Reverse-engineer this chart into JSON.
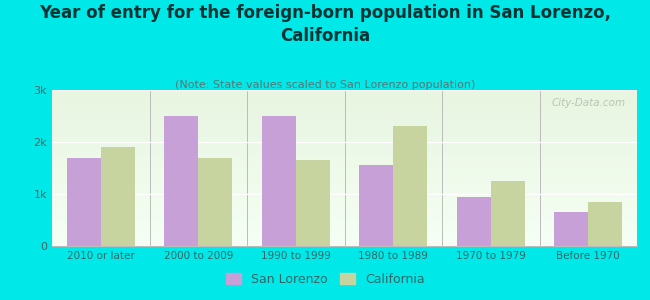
{
  "title": "Year of entry for the foreign-born population in San Lorenzo,\nCalifornia",
  "subtitle": "(Note: State values scaled to San Lorenzo population)",
  "categories": [
    "2010 or later",
    "2000 to 2009",
    "1990 to 1999",
    "1980 to 1989",
    "1970 to 1979",
    "Before 1970"
  ],
  "san_lorenzo": [
    1700,
    2500,
    2500,
    1550,
    950,
    650
  ],
  "california": [
    1900,
    1700,
    1650,
    2300,
    1250,
    850
  ],
  "sl_color": "#c8a0d8",
  "ca_color": "#c8d4a0",
  "background_color": "#00e8e8",
  "plot_bg_top": "#e8f5e0",
  "plot_bg_bottom": "#f5fff5",
  "ylim": [
    0,
    3000
  ],
  "yticks": [
    0,
    1000,
    2000,
    3000
  ],
  "ytick_labels": [
    "0",
    "1k",
    "2k",
    "3k"
  ],
  "bar_width": 0.35,
  "title_fontsize": 12,
  "subtitle_fontsize": 8,
  "legend_labels": [
    "San Lorenzo",
    "California"
  ],
  "watermark": "City-Data.com"
}
